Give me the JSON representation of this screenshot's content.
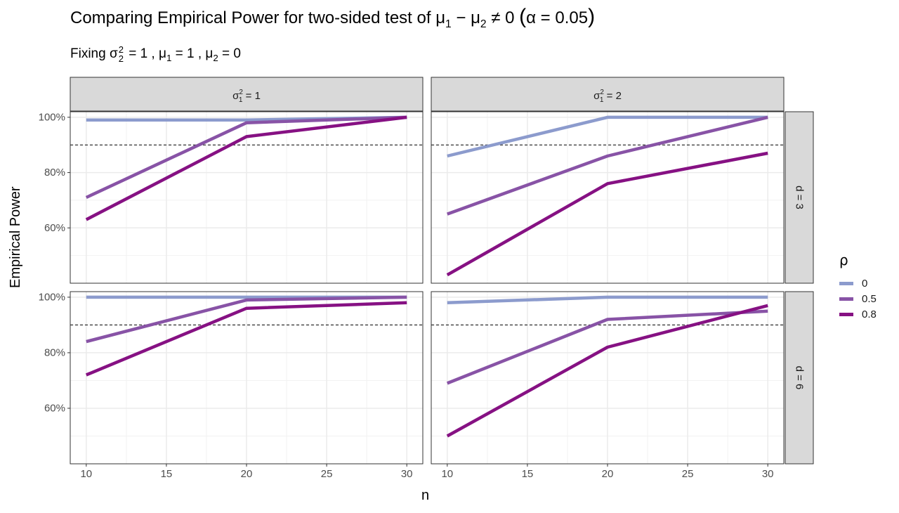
{
  "title": {
    "prefix": "Comparing Empirical Power for two-sided test of ",
    "mu1": "μ",
    "sub1": "1",
    "minus": " − ",
    "mu2": "μ",
    "sub2": "2",
    "neq": " ≠ 0 ",
    "lparen": "(",
    "alpha": "α = 0.05",
    "rparen": ")"
  },
  "subtitle": {
    "fixing": "Fixing ",
    "sigma": "σ",
    "sup": "2",
    "sub": "2",
    "rest": " = 1 , ",
    "mu1": "μ",
    "mu1_sub": "1",
    "mu1_rest": " = 1 , ",
    "mu2": "μ",
    "mu2_sub": "2",
    "mu2_rest": " = 0"
  },
  "chart_data": {
    "type": "line",
    "xlabel": "n",
    "ylabel": "Empirical Power",
    "x": [
      10,
      20,
      30
    ],
    "x_ticks": [
      10,
      15,
      20,
      25,
      30
    ],
    "xlim": [
      9,
      31
    ],
    "y_ticks": [
      60,
      80,
      100
    ],
    "y_tick_labels": [
      "60%",
      "80%",
      "100%"
    ],
    "ylim": [
      40,
      102
    ],
    "reference_line": {
      "y": 90,
      "style": "dashed"
    },
    "legend": {
      "title": "ρ",
      "position": "right",
      "entries": [
        {
          "label": "0",
          "color": "#8C9BCD"
        },
        {
          "label": "0.5",
          "color": "#8853A6"
        },
        {
          "label": "0.8",
          "color": "#861183"
        }
      ]
    },
    "facet_columns": [
      {
        "sigma": "σ",
        "sup": "2",
        "sub": "1",
        "rest": " = 1"
      },
      {
        "sigma": "σ",
        "sup": "2",
        "sub": "1",
        "rest": " = 2"
      }
    ],
    "facet_rows": [
      {
        "label": "d = 3"
      },
      {
        "label": "d = 6"
      }
    ],
    "panels": [
      {
        "row": 0,
        "col": 0,
        "series": [
          {
            "rho": "0",
            "values": [
              99,
              99,
              100
            ]
          },
          {
            "rho": "0.5",
            "values": [
              71,
              98,
              100
            ]
          },
          {
            "rho": "0.8",
            "values": [
              63,
              93,
              100
            ]
          }
        ]
      },
      {
        "row": 0,
        "col": 1,
        "series": [
          {
            "rho": "0",
            "values": [
              86,
              100,
              100
            ]
          },
          {
            "rho": "0.5",
            "values": [
              65,
              86,
              100
            ]
          },
          {
            "rho": "0.8",
            "values": [
              43,
              76,
              87
            ]
          }
        ]
      },
      {
        "row": 1,
        "col": 0,
        "series": [
          {
            "rho": "0",
            "values": [
              100,
              100,
              100
            ]
          },
          {
            "rho": "0.5",
            "values": [
              84,
              99,
              100
            ]
          },
          {
            "rho": "0.8",
            "values": [
              72,
              96,
              98
            ]
          }
        ]
      },
      {
        "row": 1,
        "col": 1,
        "series": [
          {
            "rho": "0",
            "values": [
              98,
              100,
              100
            ]
          },
          {
            "rho": "0.5",
            "values": [
              69,
              92,
              95
            ]
          },
          {
            "rho": "0.8",
            "values": [
              50,
              82,
              97
            ]
          }
        ]
      }
    ]
  }
}
